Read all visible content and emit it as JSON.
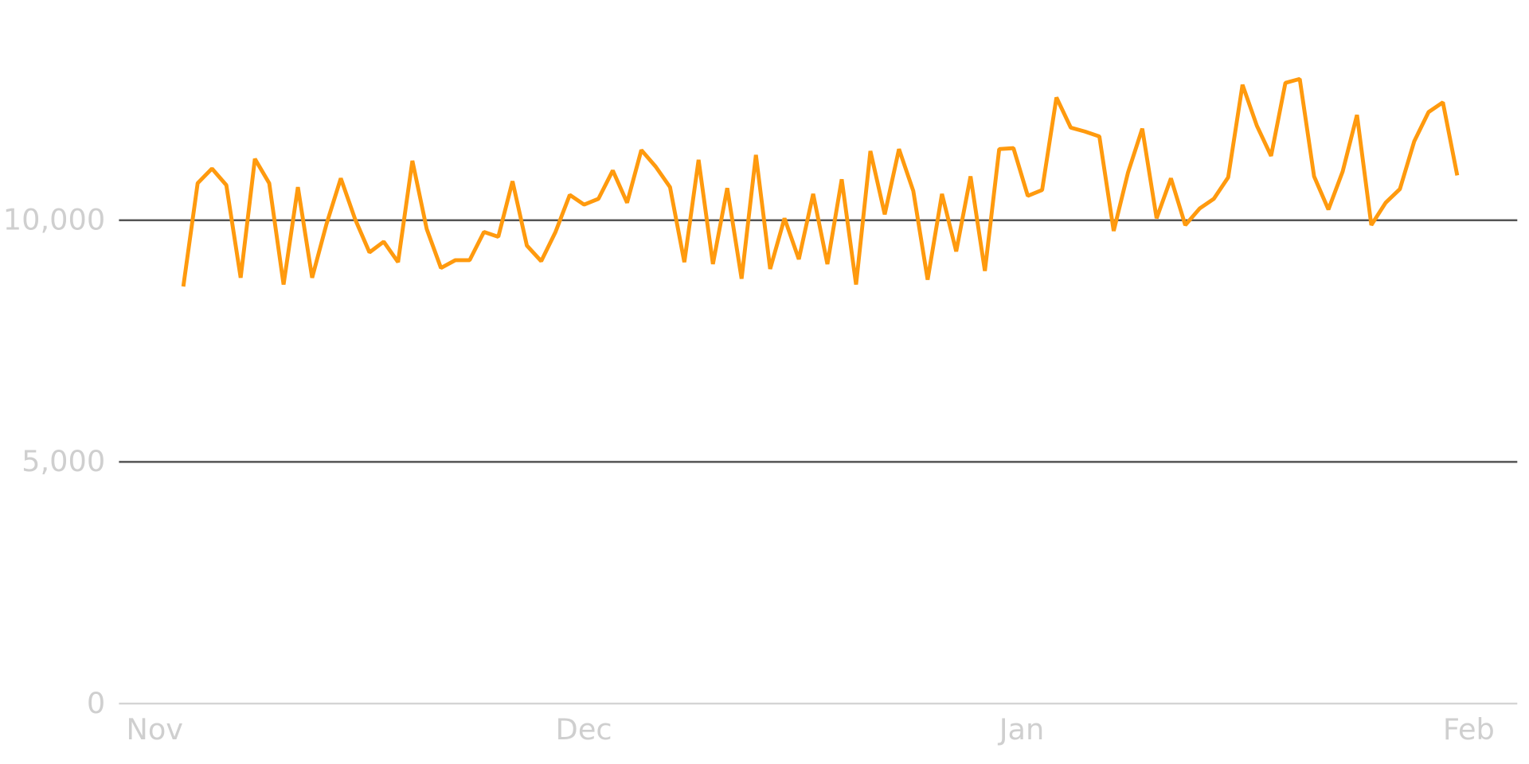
{
  "chart_data": {
    "type": "line",
    "x": [
      4,
      5,
      6,
      7,
      8,
      9,
      10,
      11,
      12,
      13,
      14,
      15,
      16,
      17,
      18,
      19,
      20,
      21,
      22,
      23,
      24,
      25,
      26,
      27,
      28,
      29,
      30,
      31,
      32,
      33,
      34,
      35,
      36,
      37,
      38,
      39,
      40,
      41,
      42,
      43,
      44,
      45,
      46,
      47,
      48,
      49,
      50,
      51,
      52,
      53,
      54,
      55,
      56,
      57,
      58,
      59,
      60,
      61,
      62,
      63,
      64,
      65,
      66,
      67,
      68,
      69,
      70,
      71,
      72,
      73,
      74,
      75,
      76,
      77,
      78,
      79,
      80,
      81,
      82,
      83,
      84,
      85,
      86,
      87,
      88,
      89,
      90,
      91,
      92,
      93
    ],
    "series": [
      {
        "color": "#ff9a0e",
        "values": [
          8629,
          10766,
          11069,
          10726,
          8810,
          11270,
          10766,
          8669,
          10685,
          8810,
          9919,
          10867,
          10020,
          9335,
          9556,
          9133,
          11230,
          9819,
          9012,
          9173,
          9173,
          9758,
          9657,
          10806,
          9476,
          9153,
          9758,
          10524,
          10323,
          10444,
          11028,
          10363,
          11452,
          11109,
          10685,
          9133,
          11250,
          9093,
          10665,
          8790,
          11351,
          8992,
          10040,
          9194,
          10544,
          9093,
          10847,
          8669,
          11431,
          10121,
          11472,
          10605,
          8770,
          10544,
          9355,
          10907,
          8952,
          11472,
          11492,
          10504,
          10625,
          12540,
          11915,
          11835,
          11734,
          9778,
          10988,
          11895,
          10040,
          10867,
          9899,
          10242,
          10444,
          10887,
          12802,
          11956,
          11331,
          12843,
          12923,
          10907,
          10222,
          11008,
          12177,
          9899,
          10363,
          10645,
          11633,
          12238,
          12440,
          10927
        ]
      }
    ],
    "xlim": [
      -0.5,
      97.2
    ],
    "xticks": [
      {
        "value": 0,
        "label": "Nov"
      },
      {
        "value": 30,
        "label": "Dec"
      },
      {
        "value": 61,
        "label": "Jan"
      },
      {
        "value": 92,
        "label": "Feb"
      }
    ],
    "ylim": [
      0,
      14000
    ],
    "yticks": [
      0,
      {
        "value": 5000,
        "label": "5,000"
      },
      {
        "value": 10000,
        "label": "10,000"
      }
    ],
    "grid": true
  }
}
